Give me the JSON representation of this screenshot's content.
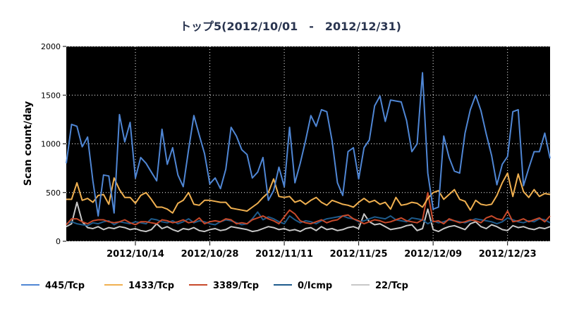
{
  "chart_data": {
    "type": "line",
    "title": "トップ5(2012/10/01　-　2012/12/31)",
    "xlabel": "",
    "ylabel": "Scan count/day",
    "ylim": [
      0,
      2000
    ],
    "yticks": [
      0,
      500,
      1000,
      1500,
      2000
    ],
    "x_range": [
      "2012-10-01",
      "2012-12-31"
    ],
    "xticks": [
      {
        "date": "2012-10-14",
        "label": "2012/10/14"
      },
      {
        "date": "2012-10-28",
        "label": "2012/10/28"
      },
      {
        "date": "2012-11-11",
        "label": "2012/11/11"
      },
      {
        "date": "2012-11-25",
        "label": "2012/11/25"
      },
      {
        "date": "2012-12-09",
        "label": "2012/12/09"
      },
      {
        "date": "2012-12-23",
        "label": "2012/12/23"
      }
    ],
    "grid": true,
    "background": "#000000",
    "gridColor": "#ffffff",
    "legend_position": "bottom",
    "series": [
      {
        "name": "445/Tcp",
        "color": "#4f86d4",
        "values": [
          800,
          1200,
          1180,
          970,
          1070,
          620,
          260,
          680,
          670,
          290,
          1300,
          1020,
          1220,
          650,
          860,
          800,
          710,
          620,
          1150,
          790,
          960,
          680,
          560,
          940,
          1290,
          1090,
          900,
          590,
          650,
          540,
          740,
          1170,
          1080,
          940,
          890,
          650,
          710,
          860,
          420,
          520,
          760,
          560,
          1170,
          600,
          800,
          1030,
          1290,
          1180,
          1350,
          1330,
          1030,
          600,
          470,
          920,
          960,
          640,
          960,
          1040,
          1390,
          1490,
          1230,
          1450,
          1440,
          1430,
          1240,
          920,
          1000,
          1730,
          700,
          330,
          350,
          1080,
          860,
          720,
          700,
          1110,
          1350,
          1500,
          1340,
          1100,
          880,
          580,
          790,
          870,
          1330,
          1350,
          570,
          750,
          920,
          920,
          1110,
          850
        ]
      },
      {
        "name": "1433/Tcp",
        "color": "#f0b050",
        "values": [
          430,
          430,
          600,
          420,
          440,
          400,
          470,
          480,
          380,
          650,
          530,
          450,
          450,
          390,
          470,
          500,
          430,
          350,
          350,
          330,
          290,
          390,
          420,
          500,
          380,
          370,
          420,
          420,
          410,
          400,
          400,
          340,
          330,
          320,
          310,
          350,
          390,
          450,
          500,
          640,
          460,
          450,
          460,
          400,
          420,
          380,
          420,
          450,
          400,
          370,
          420,
          400,
          380,
          370,
          350,
          400,
          440,
          400,
          420,
          380,
          400,
          330,
          450,
          370,
          380,
          400,
          390,
          350,
          440,
          500,
          520,
          430,
          480,
          530,
          430,
          410,
          320,
          420,
          380,
          370,
          380,
          470,
          600,
          700,
          460,
          690,
          510,
          450,
          530,
          460,
          490,
          480
        ]
      },
      {
        "name": "3389/Tcp",
        "color": "#c8492a",
        "values": [
          170,
          230,
          230,
          200,
          180,
          210,
          220,
          220,
          200,
          190,
          200,
          220,
          190,
          170,
          200,
          200,
          190,
          180,
          220,
          210,
          190,
          200,
          220,
          190,
          200,
          240,
          180,
          200,
          210,
          200,
          230,
          220,
          180,
          190,
          180,
          220,
          240,
          260,
          230,
          210,
          180,
          250,
          320,
          280,
          210,
          190,
          180,
          200,
          220,
          190,
          210,
          220,
          260,
          270,
          230,
          210,
          180,
          200,
          220,
          210,
          190,
          200,
          220,
          240,
          210,
          200,
          190,
          220,
          500,
          200,
          210,
          180,
          230,
          210,
          190,
          200,
          220,
          210,
          190,
          240,
          260,
          230,
          220,
          310,
          200,
          210,
          230,
          200,
          220,
          240,
          200,
          260
        ]
      },
      {
        "name": "0/Icmp",
        "color": "#1e5b8c",
        "values": [
          180,
          200,
          180,
          170,
          160,
          190,
          180,
          200,
          210,
          170,
          200,
          190,
          180,
          200,
          190,
          180,
          230,
          220,
          200,
          190,
          210,
          180,
          200,
          230,
          190,
          210,
          200,
          180,
          170,
          200,
          220,
          210,
          190,
          170,
          180,
          230,
          300,
          220,
          250,
          230,
          200,
          180,
          260,
          220,
          190,
          210,
          200,
          180,
          210,
          230,
          240,
          250,
          260,
          240,
          230,
          200,
          210,
          230,
          250,
          240,
          230,
          260,
          220,
          210,
          200,
          240,
          230,
          220,
          180,
          210,
          190,
          200,
          220,
          210,
          200,
          190,
          210,
          230,
          220,
          210,
          200,
          180,
          200,
          240,
          220,
          200,
          190,
          210,
          200,
          230,
          220,
          190
        ]
      },
      {
        "name": "22/Tcp",
        "color": "#c8c8c8",
        "values": [
          150,
          180,
          400,
          200,
          140,
          130,
          150,
          120,
          140,
          130,
          150,
          140,
          120,
          130,
          110,
          100,
          120,
          180,
          130,
          150,
          120,
          100,
          130,
          120,
          140,
          110,
          100,
          120,
          130,
          110,
          120,
          150,
          140,
          130,
          120,
          100,
          110,
          130,
          150,
          140,
          120,
          130,
          110,
          120,
          100,
          130,
          140,
          110,
          150,
          120,
          130,
          110,
          120,
          140,
          150,
          130,
          280,
          200,
          170,
          180,
          150,
          120,
          130,
          140,
          160,
          170,
          110,
          130,
          330,
          120,
          100,
          130,
          150,
          160,
          140,
          120,
          180,
          200,
          150,
          130,
          170,
          150,
          120,
          110,
          160,
          140,
          150,
          130,
          120,
          140,
          130,
          150
        ]
      }
    ]
  }
}
